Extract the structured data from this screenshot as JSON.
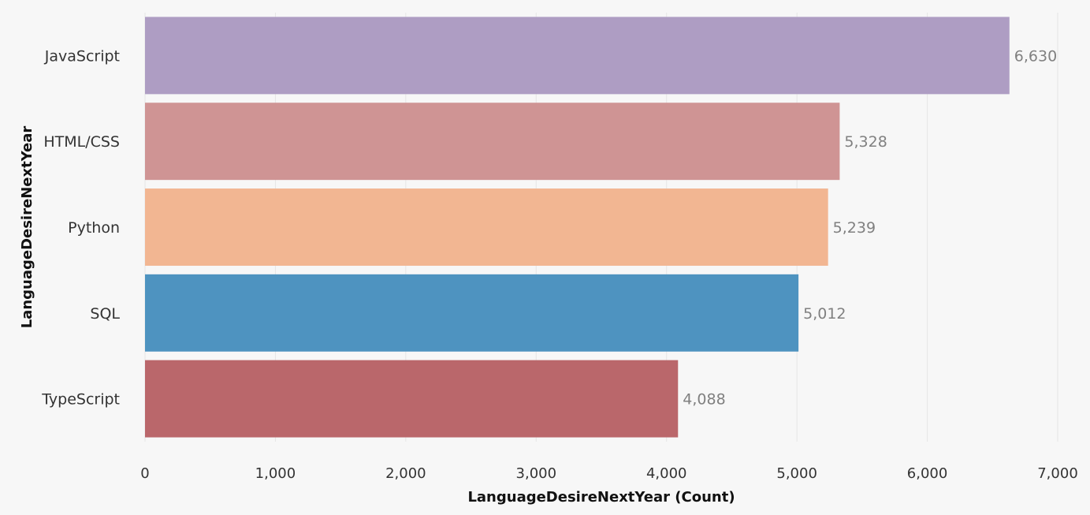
{
  "chart_data": {
    "type": "bar",
    "orientation": "horizontal",
    "categories": [
      "JavaScript",
      "HTML/CSS",
      "Python",
      "SQL",
      "TypeScript"
    ],
    "values": [
      6630,
      5328,
      5239,
      5012,
      4088
    ],
    "value_labels": [
      "6,630",
      "5,328",
      "5,239",
      "5,012",
      "4,088"
    ],
    "colors": [
      "#ae9dc3",
      "#cf9494",
      "#f2b692",
      "#4e93c0",
      "#ba676b"
    ],
    "xlabel": "LanguageDesireNextYear (Count)",
    "ylabel": "LanguageDesireNextYear",
    "xlim": [
      0,
      7000
    ],
    "xticks": [
      0,
      1000,
      2000,
      3000,
      4000,
      5000,
      6000,
      7000
    ],
    "xtick_labels": [
      "0",
      "1,000",
      "2,000",
      "3,000",
      "4,000",
      "5,000",
      "6,000",
      "7,000"
    ],
    "grid": "vertical",
    "legend": "none"
  }
}
